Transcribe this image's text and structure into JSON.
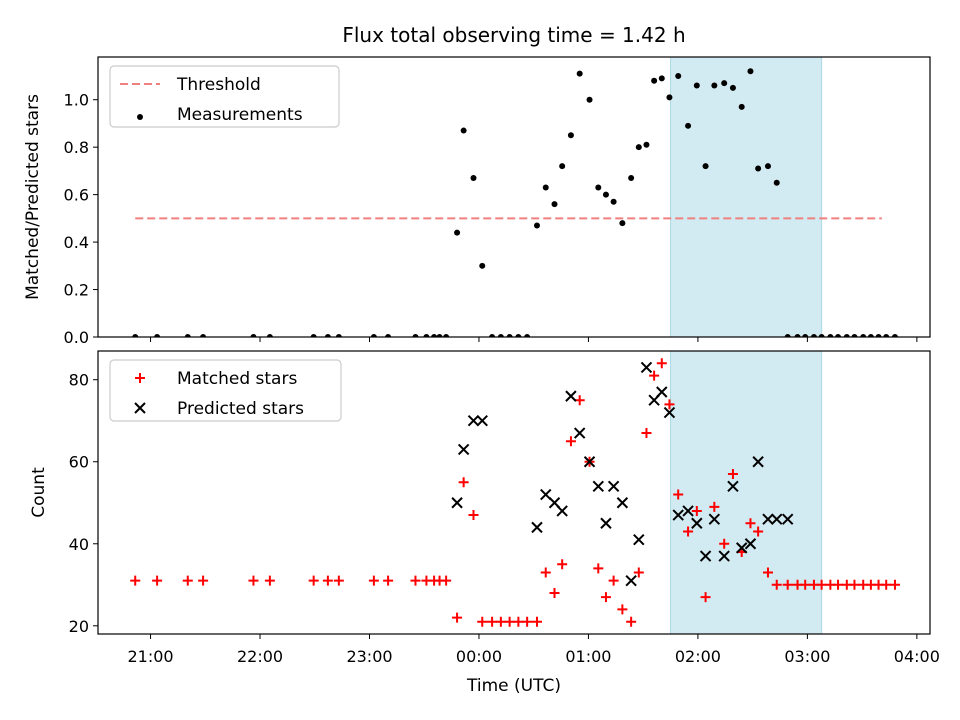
{
  "figure": {
    "title": "Flux total observing time = 1.42 h"
  },
  "chart_data": [
    {
      "type": "scatter",
      "title": "Flux total observing time = 1.42 h",
      "xlabel": "",
      "ylabel": "Matched/Predicted stars",
      "x_unit": "hours since 21:00 UTC",
      "xlim": [
        -0.48,
        7.12
      ],
      "ylim": [
        0,
        1.18
      ],
      "yticks": [
        0.0,
        0.2,
        0.4,
        0.6,
        0.8,
        1.0
      ],
      "ytick_labels": [
        "0.0",
        "0.2",
        "0.4",
        "0.6",
        "0.8",
        "1.0"
      ],
      "grid": false,
      "legend": "upper-left",
      "shaded_band": {
        "x": [
          4.75,
          6.13
        ],
        "color": "#add8e6"
      },
      "series": [
        {
          "name": "Threshold",
          "style": "dashed-line",
          "color": "#f08080",
          "x": [
            -0.14,
            6.68
          ],
          "y": [
            0.5,
            0.5
          ]
        },
        {
          "name": "Measurements",
          "style": "dot",
          "color": "#000000",
          "x": [
            -0.14,
            0.06,
            0.34,
            0.48,
            0.94,
            1.09,
            1.49,
            1.62,
            1.72,
            2.04,
            2.17,
            2.42,
            2.52,
            2.59,
            2.64,
            2.7,
            2.8,
            2.86,
            2.95,
            3.03,
            3.12,
            3.2,
            3.28,
            3.36,
            3.44,
            3.53,
            3.61,
            3.69,
            3.76,
            3.84,
            3.92,
            4.01,
            4.09,
            4.16,
            4.23,
            4.31,
            4.39,
            4.46,
            4.53,
            4.6,
            4.67,
            4.74,
            4.82,
            4.91,
            4.99,
            5.07,
            5.15,
            5.24,
            5.32,
            5.4,
            5.48,
            5.55,
            5.64,
            5.72,
            5.82,
            5.91,
            5.98,
            6.06,
            6.13,
            6.21,
            6.28,
            6.36,
            6.43,
            6.51,
            6.58,
            6.65,
            6.72,
            6.8
          ],
          "y": [
            0.0,
            0.0,
            0.0,
            0.0,
            0.0,
            0.0,
            0.0,
            0.0,
            0.0,
            0.0,
            0.0,
            0.0,
            0.0,
            0.0,
            0.0,
            0.0,
            0.44,
            0.87,
            0.67,
            0.3,
            0.0,
            0.0,
            0.0,
            0.0,
            0.0,
            0.47,
            0.63,
            0.56,
            0.72,
            0.85,
            1.11,
            1.0,
            0.63,
            0.6,
            0.57,
            0.48,
            0.67,
            0.8,
            0.81,
            1.08,
            1.09,
            1.01,
            1.1,
            0.89,
            1.06,
            0.72,
            1.06,
            1.07,
            1.05,
            0.97,
            1.12,
            0.71,
            0.72,
            0.65,
            0.0,
            0.0,
            0.0,
            0.0,
            0.0,
            0.0,
            0.0,
            0.0,
            0.0,
            0.0,
            0.0,
            0.0,
            0.0,
            0.0
          ]
        }
      ]
    },
    {
      "type": "scatter",
      "title": "",
      "xlabel": "Time (UTC)",
      "ylabel": "Count",
      "x_unit": "hours since 21:00 UTC",
      "xlim": [
        -0.48,
        7.12
      ],
      "ylim": [
        18,
        87
      ],
      "xticks": [
        0,
        1,
        2,
        3,
        4,
        5,
        6,
        7
      ],
      "xtick_labels": [
        "21:00",
        "22:00",
        "23:00",
        "00:00",
        "01:00",
        "02:00",
        "03:00",
        "04:00"
      ],
      "yticks": [
        20,
        40,
        60,
        80
      ],
      "ytick_labels": [
        "20",
        "40",
        "60",
        "80"
      ],
      "grid": false,
      "legend": "upper-left",
      "shaded_band": {
        "x": [
          4.75,
          6.13
        ],
        "color": "#add8e6"
      },
      "series": [
        {
          "name": "Matched stars",
          "style": "plus",
          "color": "#ff0000",
          "x": [
            -0.14,
            0.06,
            0.34,
            0.48,
            0.94,
            1.09,
            1.49,
            1.62,
            1.72,
            2.04,
            2.17,
            2.42,
            2.52,
            2.59,
            2.64,
            2.7,
            2.8,
            2.86,
            2.95,
            3.03,
            3.12,
            3.2,
            3.28,
            3.36,
            3.44,
            3.53,
            3.61,
            3.69,
            3.76,
            3.84,
            3.92,
            4.01,
            4.09,
            4.16,
            4.23,
            4.31,
            4.39,
            4.46,
            4.53,
            4.6,
            4.67,
            4.74,
            4.82,
            4.91,
            4.99,
            5.07,
            5.15,
            5.24,
            5.32,
            5.4,
            5.48,
            5.55,
            5.64,
            5.72,
            5.82,
            5.91,
            5.98,
            6.06,
            6.13,
            6.21,
            6.28,
            6.36,
            6.43,
            6.51,
            6.58,
            6.65,
            6.72,
            6.8
          ],
          "y": [
            31,
            31,
            31,
            31,
            31,
            31,
            31,
            31,
            31,
            31,
            31,
            31,
            31,
            31,
            31,
            31,
            22,
            55,
            47,
            21,
            21,
            21,
            21,
            21,
            21,
            21,
            33,
            28,
            35,
            65,
            75,
            60,
            34,
            27,
            31,
            24,
            21,
            33,
            67,
            81,
            84,
            74,
            52,
            43,
            48,
            27,
            49,
            40,
            57,
            38,
            45,
            43,
            33,
            30,
            30,
            30,
            30,
            30,
            30,
            30,
            30,
            30,
            30,
            30,
            30,
            30,
            30,
            30
          ]
        },
        {
          "name": "Predicted stars",
          "style": "x",
          "color": "#000000",
          "x": [
            2.8,
            2.86,
            2.95,
            3.03,
            3.53,
            3.61,
            3.69,
            3.76,
            3.84,
            3.92,
            4.01,
            4.09,
            4.16,
            4.23,
            4.31,
            4.39,
            4.46,
            4.53,
            4.6,
            4.67,
            4.74,
            4.82,
            4.91,
            4.99,
            5.07,
            5.15,
            5.24,
            5.32,
            5.4,
            5.48,
            5.55,
            5.64,
            5.72,
            5.82
          ],
          "y": [
            50,
            63,
            70,
            70,
            44,
            52,
            50,
            48,
            76,
            67,
            60,
            54,
            45,
            54,
            50,
            31,
            41,
            83,
            75,
            77,
            72,
            47,
            48,
            45,
            37,
            46,
            37,
            54,
            39,
            40,
            60,
            46,
            46,
            46
          ]
        }
      ]
    }
  ]
}
